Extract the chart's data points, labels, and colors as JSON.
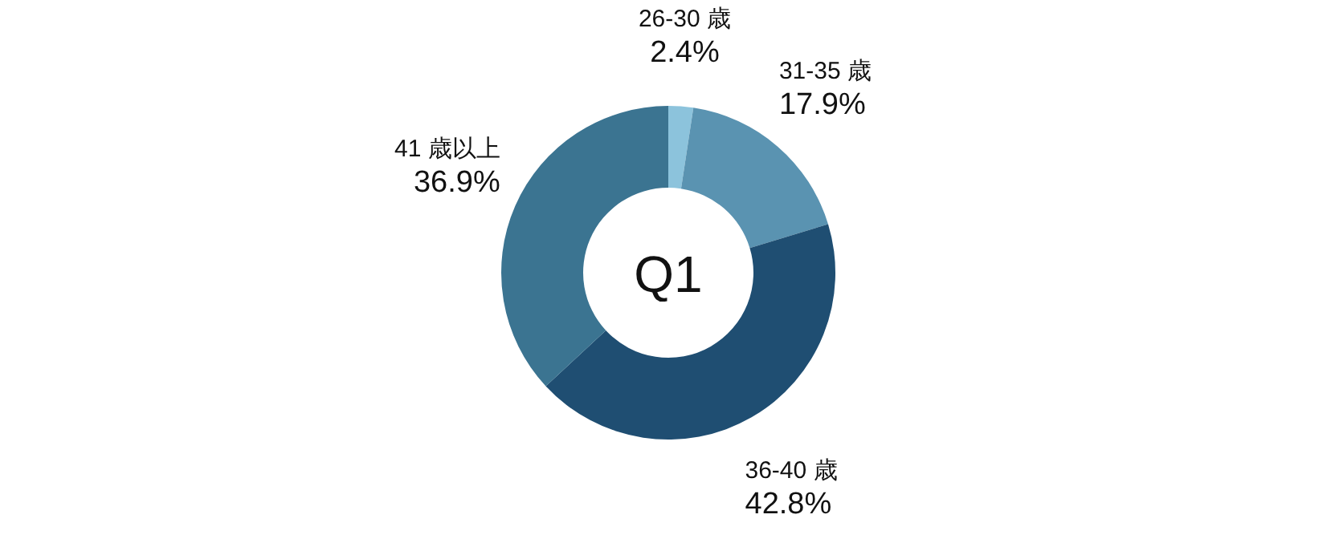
{
  "chart_data": {
    "type": "donut",
    "title": "Q1",
    "categories": [
      "26-30 歳",
      "31-35 歳",
      "36-40 歳",
      "41 歳以上"
    ],
    "values": [
      2.4,
      17.9,
      42.8,
      36.9
    ],
    "value_labels": [
      "2.4%",
      "17.9%",
      "42.8%",
      "36.9%"
    ],
    "colors": [
      "#8cc3dc",
      "#5a93b1",
      "#1f4e72",
      "#3b7491"
    ]
  }
}
